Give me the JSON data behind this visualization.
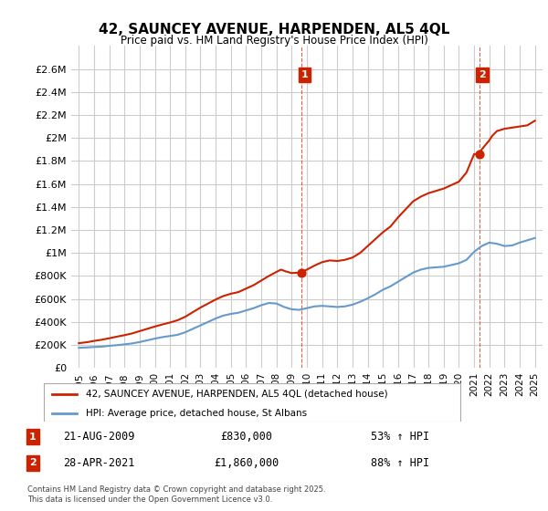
{
  "title": "42, SAUNCEY AVENUE, HARPENDEN, AL5 4QL",
  "subtitle": "Price paid vs. HM Land Registry's House Price Index (HPI)",
  "legend_line1": "42, SAUNCEY AVENUE, HARPENDEN, AL5 4QL (detached house)",
  "legend_line2": "HPI: Average price, detached house, St Albans",
  "annotation1_label": "1",
  "annotation1_date": "21-AUG-2009",
  "annotation1_price": "£830,000",
  "annotation1_hpi": "53% ↑ HPI",
  "annotation2_label": "2",
  "annotation2_date": "28-APR-2021",
  "annotation2_price": "£1,860,000",
  "annotation2_hpi": "88% ↑ HPI",
  "footer": "Contains HM Land Registry data © Crown copyright and database right 2025.\nThis data is licensed under the Open Government Licence v3.0.",
  "hpi_color": "#6699cc",
  "price_color": "#cc2200",
  "annotation_color": "#cc2200",
  "background_color": "#ffffff",
  "grid_color": "#cccccc",
  "ylim": [
    0,
    2800000
  ],
  "yticks": [
    0,
    200000,
    400000,
    600000,
    800000,
    1000000,
    1200000,
    1400000,
    1600000,
    1800000,
    2000000,
    2200000,
    2400000,
    2600000
  ],
  "xlim_start": 1994.5,
  "xlim_end": 2025.5,
  "sale1_x": 2009.64,
  "sale1_y": 830000,
  "sale2_x": 2021.33,
  "sale2_y": 1860000,
  "hpi_years": [
    1995,
    1995.5,
    1996,
    1996.5,
    1997,
    1997.5,
    1998,
    1998.5,
    1999,
    1999.5,
    2000,
    2000.5,
    2001,
    2001.5,
    2002,
    2002.5,
    2003,
    2003.5,
    2004,
    2004.5,
    2005,
    2005.5,
    2006,
    2006.5,
    2007,
    2007.5,
    2008,
    2008.5,
    2009,
    2009.5,
    2010,
    2010.5,
    2011,
    2011.5,
    2012,
    2012.5,
    2013,
    2013.5,
    2014,
    2014.5,
    2015,
    2015.5,
    2016,
    2016.5,
    2017,
    2017.5,
    2018,
    2018.5,
    2019,
    2019.5,
    2020,
    2020.5,
    2021,
    2021.5,
    2022,
    2022.5,
    2023,
    2023.5,
    2024,
    2024.5,
    2025
  ],
  "hpi_values": [
    175000,
    178000,
    182000,
    185000,
    192000,
    198000,
    205000,
    213000,
    225000,
    240000,
    255000,
    268000,
    278000,
    288000,
    310000,
    340000,
    370000,
    400000,
    430000,
    455000,
    470000,
    480000,
    500000,
    520000,
    545000,
    565000,
    560000,
    530000,
    510000,
    505000,
    520000,
    535000,
    540000,
    535000,
    530000,
    535000,
    550000,
    575000,
    605000,
    640000,
    680000,
    710000,
    750000,
    790000,
    830000,
    855000,
    870000,
    875000,
    880000,
    895000,
    910000,
    940000,
    1010000,
    1060000,
    1090000,
    1080000,
    1060000,
    1065000,
    1090000,
    1110000,
    1130000
  ],
  "price_years": [
    1995,
    1995.3,
    1995.6,
    1996,
    1996.5,
    1997,
    1997.5,
    1998,
    1998.5,
    1999,
    1999.5,
    2000,
    2000.5,
    2001,
    2001.5,
    2002,
    2002.5,
    2003,
    2003.5,
    2004,
    2004.5,
    2005,
    2005.5,
    2006,
    2006.5,
    2007,
    2007.5,
    2008,
    2008.3,
    2008.6,
    2009,
    2009.64,
    2010,
    2010.5,
    2011,
    2011.5,
    2012,
    2012.5,
    2013,
    2013.5,
    2014,
    2014.5,
    2015,
    2015.5,
    2016,
    2016.5,
    2017,
    2017.5,
    2018,
    2018.5,
    2019,
    2019.5,
    2020,
    2020.5,
    2021,
    2021.33,
    2021.5,
    2022,
    2022.2,
    2022.5,
    2023,
    2023.5,
    2024,
    2024.5,
    2025
  ],
  "price_values": [
    215000,
    220000,
    225000,
    235000,
    245000,
    258000,
    272000,
    285000,
    300000,
    320000,
    340000,
    360000,
    378000,
    395000,
    415000,
    445000,
    485000,
    525000,
    560000,
    595000,
    625000,
    645000,
    660000,
    690000,
    720000,
    760000,
    800000,
    835000,
    855000,
    840000,
    825000,
    830000,
    855000,
    890000,
    920000,
    935000,
    930000,
    940000,
    960000,
    1000000,
    1060000,
    1120000,
    1180000,
    1230000,
    1310000,
    1380000,
    1450000,
    1490000,
    1520000,
    1540000,
    1560000,
    1590000,
    1620000,
    1700000,
    1860000,
    1860000,
    1900000,
    1980000,
    2020000,
    2060000,
    2080000,
    2090000,
    2100000,
    2110000,
    2150000
  ]
}
